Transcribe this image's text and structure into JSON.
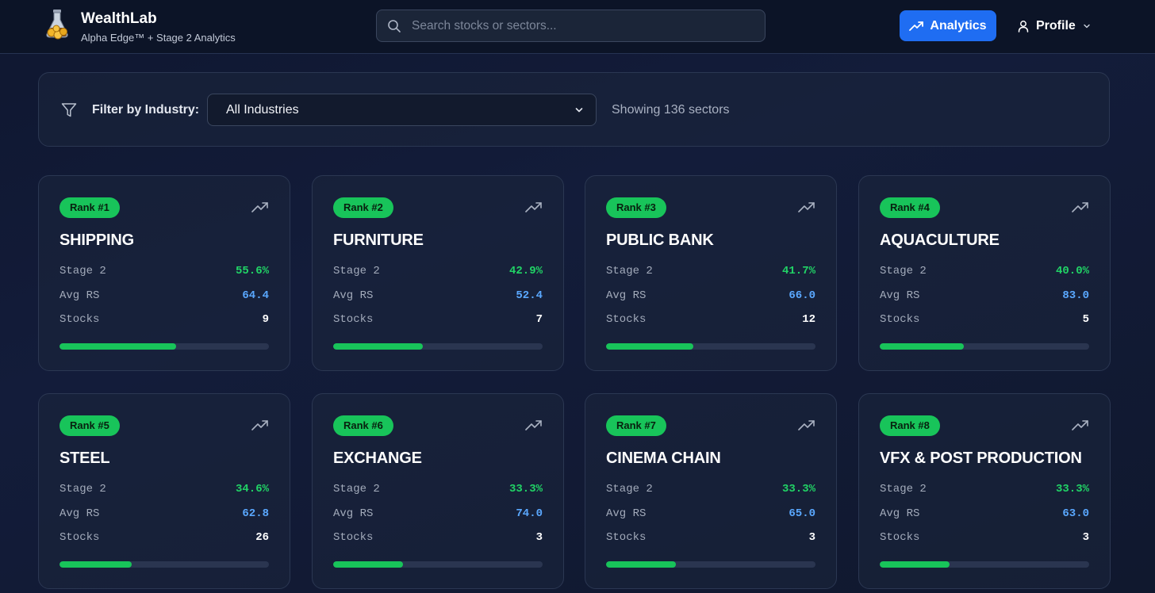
{
  "header": {
    "brand_title": "WealthLab",
    "brand_subtitle": "Alpha Edge™ + Stage 2 Analytics",
    "search_placeholder": "Search stocks or sectors...",
    "analytics_label": "Analytics",
    "profile_label": "Profile"
  },
  "filter": {
    "label": "Filter by Industry:",
    "selected": "All Industries",
    "showing": "Showing 136 sectors"
  },
  "labels": {
    "stage2": "Stage 2",
    "avg_rs": "Avg RS",
    "stocks": "Stocks"
  },
  "colors": {
    "accent": "#1f6df2",
    "green": "#18c45a",
    "stage_value": "#21d466",
    "rs_value": "#5aa8ff"
  },
  "sectors": [
    {
      "rank": "Rank #1",
      "name": "SHIPPING",
      "stage2": "55.6%",
      "stage2_fraction": 0.556,
      "avg_rs": "64.4",
      "stocks": "9"
    },
    {
      "rank": "Rank #2",
      "name": "FURNITURE",
      "stage2": "42.9%",
      "stage2_fraction": 0.429,
      "avg_rs": "52.4",
      "stocks": "7"
    },
    {
      "rank": "Rank #3",
      "name": "PUBLIC BANK",
      "stage2": "41.7%",
      "stage2_fraction": 0.417,
      "avg_rs": "66.0",
      "stocks": "12"
    },
    {
      "rank": "Rank #4",
      "name": "AQUACULTURE",
      "stage2": "40.0%",
      "stage2_fraction": 0.4,
      "avg_rs": "83.0",
      "stocks": "5"
    },
    {
      "rank": "Rank #5",
      "name": "STEEL",
      "stage2": "34.6%",
      "stage2_fraction": 0.346,
      "avg_rs": "62.8",
      "stocks": "26"
    },
    {
      "rank": "Rank #6",
      "name": "EXCHANGE",
      "stage2": "33.3%",
      "stage2_fraction": 0.333,
      "avg_rs": "74.0",
      "stocks": "3"
    },
    {
      "rank": "Rank #7",
      "name": "CINEMA CHAIN",
      "stage2": "33.3%",
      "stage2_fraction": 0.333,
      "avg_rs": "65.0",
      "stocks": "3"
    },
    {
      "rank": "Rank #8",
      "name": "VFX & POST PRODUCTION",
      "stage2": "33.3%",
      "stage2_fraction": 0.333,
      "avg_rs": "63.0",
      "stocks": "3"
    }
  ]
}
